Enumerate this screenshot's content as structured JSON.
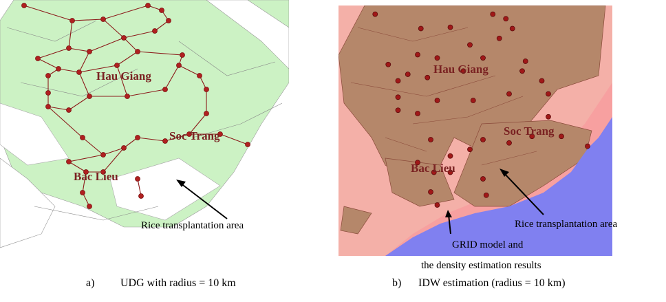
{
  "panels": [
    {
      "places": [
        "Hau Giang",
        "Soc Trang",
        "Bac Lieu"
      ],
      "annotations": [
        "Rice transplantation area"
      ],
      "caption": {
        "label": "a)",
        "text": "UDG with radius = 10 km"
      }
    },
    {
      "places": [
        "Hau Giang",
        "Soc Trang",
        "Bac Lieu"
      ],
      "annotations": [
        "Rice transplantation area",
        "GRID model and",
        "the density estimation results"
      ],
      "caption": {
        "label": "b)",
        "text": "IDW estimation (radius = 10 km)"
      }
    }
  ]
}
